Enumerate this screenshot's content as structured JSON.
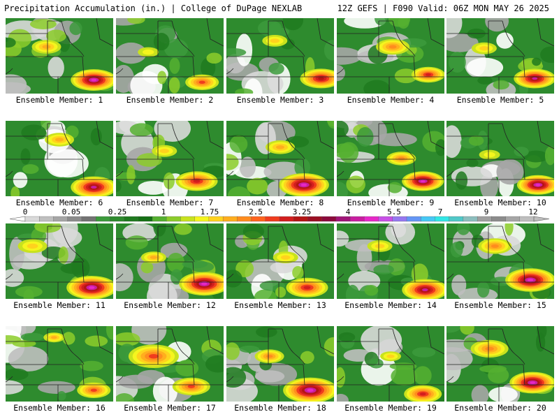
{
  "header": {
    "left_title": "Precipitation Accumulation (in.) | College of DuPage NEXLAB",
    "right_title": "12Z GEFS | F090 Valid: 06Z MON MAY 26 2025"
  },
  "colorbar": {
    "tick_labels": [
      "0",
      "0.05",
      "0.25",
      "1",
      "1.75",
      "2.5",
      "3.25",
      "4",
      "5.5",
      "7",
      "9",
      "12"
    ],
    "colors": [
      "#d9d9d9",
      "#bfbfbf",
      "#a6a6a6",
      "#8c8c8c",
      "#737373",
      "#3c9a3c",
      "#2e8b2e",
      "#1e7a1e",
      "#147014",
      "#55b030",
      "#8ccc2a",
      "#c8e21e",
      "#f5f51e",
      "#ffd21e",
      "#ffae1e",
      "#ff8c1e",
      "#ff641e",
      "#f03c1e",
      "#d21e1e",
      "#b41414",
      "#9b0f23",
      "#8c0a3c",
      "#a01478",
      "#c81ea0",
      "#e628c8",
      "#c850e6",
      "#9678f0",
      "#6496f5",
      "#46c8f5",
      "#32e6e6",
      "#50c8c8",
      "#8cbebe",
      "#a0a0a0",
      "#8c8c8c",
      "#a6a6a6",
      "#bebebe"
    ]
  },
  "members": [
    {
      "label": "Ensemble Member: 1"
    },
    {
      "label": "Ensemble Member: 2"
    },
    {
      "label": "Ensemble Member: 3"
    },
    {
      "label": "Ensemble Member: 4"
    },
    {
      "label": "Ensemble Member: 5"
    },
    {
      "label": "Ensemble Member: 6"
    },
    {
      "label": "Ensemble Member: 7"
    },
    {
      "label": "Ensemble Member: 8"
    },
    {
      "label": "Ensemble Member: 9"
    },
    {
      "label": "Ensemble Member: 10"
    },
    {
      "label": "Ensemble Member: 11"
    },
    {
      "label": "Ensemble Member: 12"
    },
    {
      "label": "Ensemble Member: 13"
    },
    {
      "label": "Ensemble Member: 14"
    },
    {
      "label": "Ensemble Member: 15"
    },
    {
      "label": "Ensemble Member: 16"
    },
    {
      "label": "Ensemble Member: 17"
    },
    {
      "label": "Ensemble Member: 18"
    },
    {
      "label": "Ensemble Member: 19"
    },
    {
      "label": "Ensemble Member: 20"
    }
  ]
}
